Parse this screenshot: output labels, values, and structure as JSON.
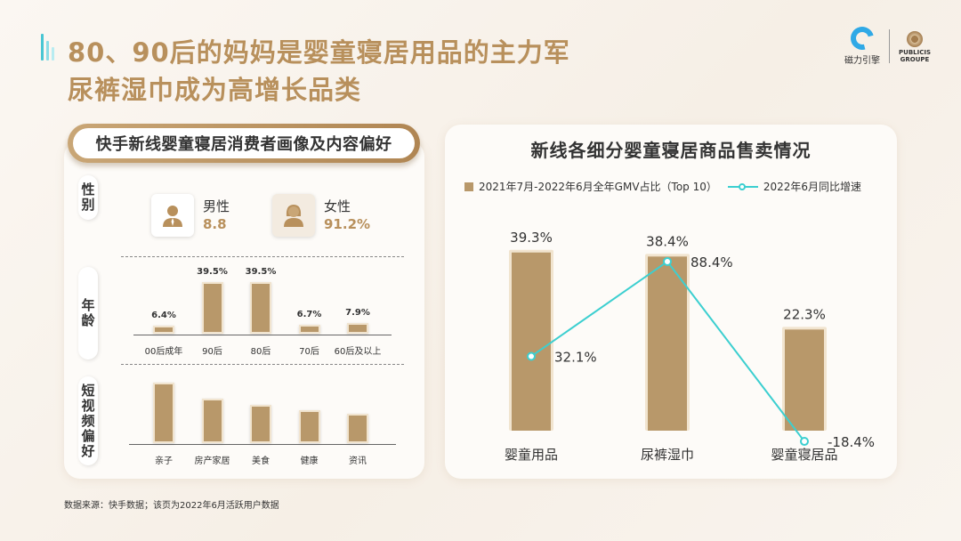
{
  "header": {
    "title_line1": "80、90后的妈妈是婴童寝居用品的主力军",
    "title_line2": "尿裤湿巾成为高增长品类",
    "logo_left_text": "磁力引擎",
    "logo_right_text": "PUBLICIS GROUPE",
    "logo_right_line1": "PUBLICIS",
    "logo_right_line2": "GROUPE"
  },
  "left_panel": {
    "title": "快手新线婴童寝居消费者画像及内容偏好",
    "gender": {
      "row_label": "性别",
      "male_label": "男性",
      "male_value": "8.8",
      "female_label": "女性",
      "female_value": "91.2%"
    },
    "age_row_label": "年龄",
    "content_row_label": "短视频偏好"
  },
  "age_chart": {
    "type": "bar",
    "categories": [
      "00后成年",
      "90后",
      "80后",
      "70后",
      "60后及以上"
    ],
    "values": [
      6.4,
      39.5,
      39.5,
      6.7,
      7.9
    ],
    "value_labels": [
      "6.4%",
      "39.5%",
      "39.5%",
      "6.7%",
      "7.9%"
    ],
    "ylim": [
      0,
      45
    ]
  },
  "content_chart": {
    "type": "bar",
    "categories": [
      "亲子",
      "房产家居",
      "美食",
      "健康",
      "资讯"
    ],
    "values": [
      100,
      73,
      63,
      54,
      49
    ],
    "ylim": [
      0,
      100
    ]
  },
  "chart_data": {
    "type": "bar",
    "title": "新线各细分婴童寝居商品售卖情况",
    "categories": [
      "婴童用品",
      "尿裤湿巾",
      "婴童寝居品"
    ],
    "series": [
      {
        "name": "2021年7月-2022年6月全年GMV占比（Top 10）",
        "kind": "bar",
        "values": [
          39.3,
          38.4,
          22.3
        ],
        "labels": [
          "39.3%",
          "38.4%",
          "22.3%"
        ]
      },
      {
        "name": "2022年6月同比增速",
        "kind": "line",
        "values": [
          32.1,
          88.4,
          -18.4
        ],
        "labels": [
          "32.1%",
          "88.4%",
          "-18.4%"
        ]
      }
    ],
    "bar_ylim": [
      0,
      42
    ],
    "line_ylim": [
      -30,
      100
    ],
    "colors": {
      "bar": "#b8986a",
      "line": "#3ccfd0"
    }
  },
  "footer": {
    "source": "数据来源：快手数据；该页为2022年6月活跃用户数据"
  }
}
